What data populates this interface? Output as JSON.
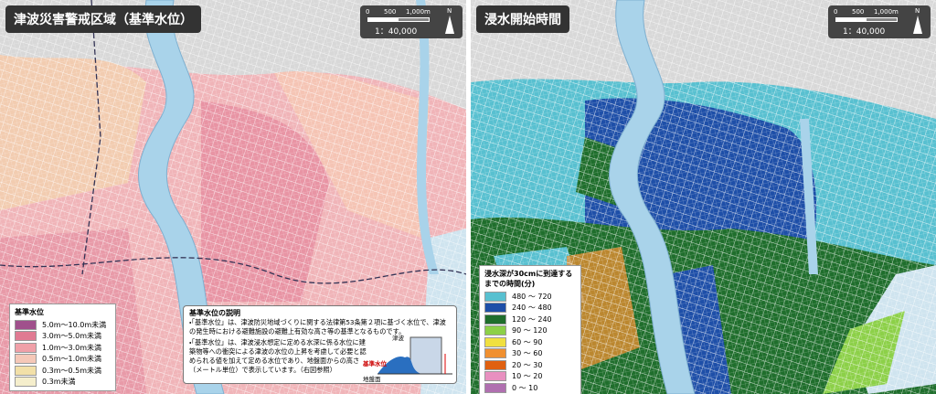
{
  "left_panel": {
    "title": "津波災害警戒区域（基準水位）",
    "scale": {
      "start": "0",
      "mid": "500",
      "end": "1,000m",
      "ratio": "1：40,000",
      "north": "N"
    },
    "legend": {
      "title": "基準水位",
      "items": [
        {
          "label": "5.0m～10.0m未満",
          "color": "#a0508c"
        },
        {
          "label": "3.0m～5.0m未満",
          "color": "#e07a92"
        },
        {
          "label": "1.0m～3.0m未満",
          "color": "#f0a0a8"
        },
        {
          "label": "0.5m～1.0m未満",
          "color": "#f5c8b8"
        },
        {
          "label": "0.3m～0.5m未満",
          "color": "#f2e0a8"
        },
        {
          "label": "0.3m未満",
          "color": "#f5eecc"
        }
      ]
    },
    "explanation": {
      "title": "基準水位の説明",
      "bullets": [
        "・「基準水位」は、津波防災地域づくりに関する法律第53条第２項に基づく水位で、津波の発生時における避難施設の避難上有効な高さ等の基準となるものです。",
        "・「基準水位」は、津波浸水想定に定める水深に係る水位に建築物等への衝突による津波の水位の上昇を考慮して必要と認められる値を加えて定める水位であり、地盤面からの高さ（メートル単位）で表示しています。（右図参照）"
      ],
      "diagram": {
        "tsunami": "津波",
        "reference": "基準水位",
        "ground": "地盤面"
      }
    }
  },
  "right_panel": {
    "title": "浸水開始時間",
    "scale": {
      "start": "0",
      "mid": "500",
      "end": "1,000m",
      "ratio": "1：40,000",
      "north": "N"
    },
    "legend": {
      "title": "浸水深が30cmに到達するまでの時間(分)",
      "items": [
        {
          "label": "480 ～ 720",
          "color": "#58c0d0"
        },
        {
          "label": "240 ～ 480",
          "color": "#1e4fa8"
        },
        {
          "label": "120 ～ 240",
          "color": "#1f6e2c"
        },
        {
          "label": "90 ～ 120",
          "color": "#8cd048"
        },
        {
          "label": "60 ～ 90",
          "color": "#f0e040"
        },
        {
          "label": "30 ～ 60",
          "color": "#f09030"
        },
        {
          "label": "20 ～ 30",
          "color": "#e06010"
        },
        {
          "label": "10 ～ 20",
          "color": "#e890c0"
        },
        {
          "label": "0 ～ 10",
          "color": "#b070b0"
        }
      ]
    }
  }
}
